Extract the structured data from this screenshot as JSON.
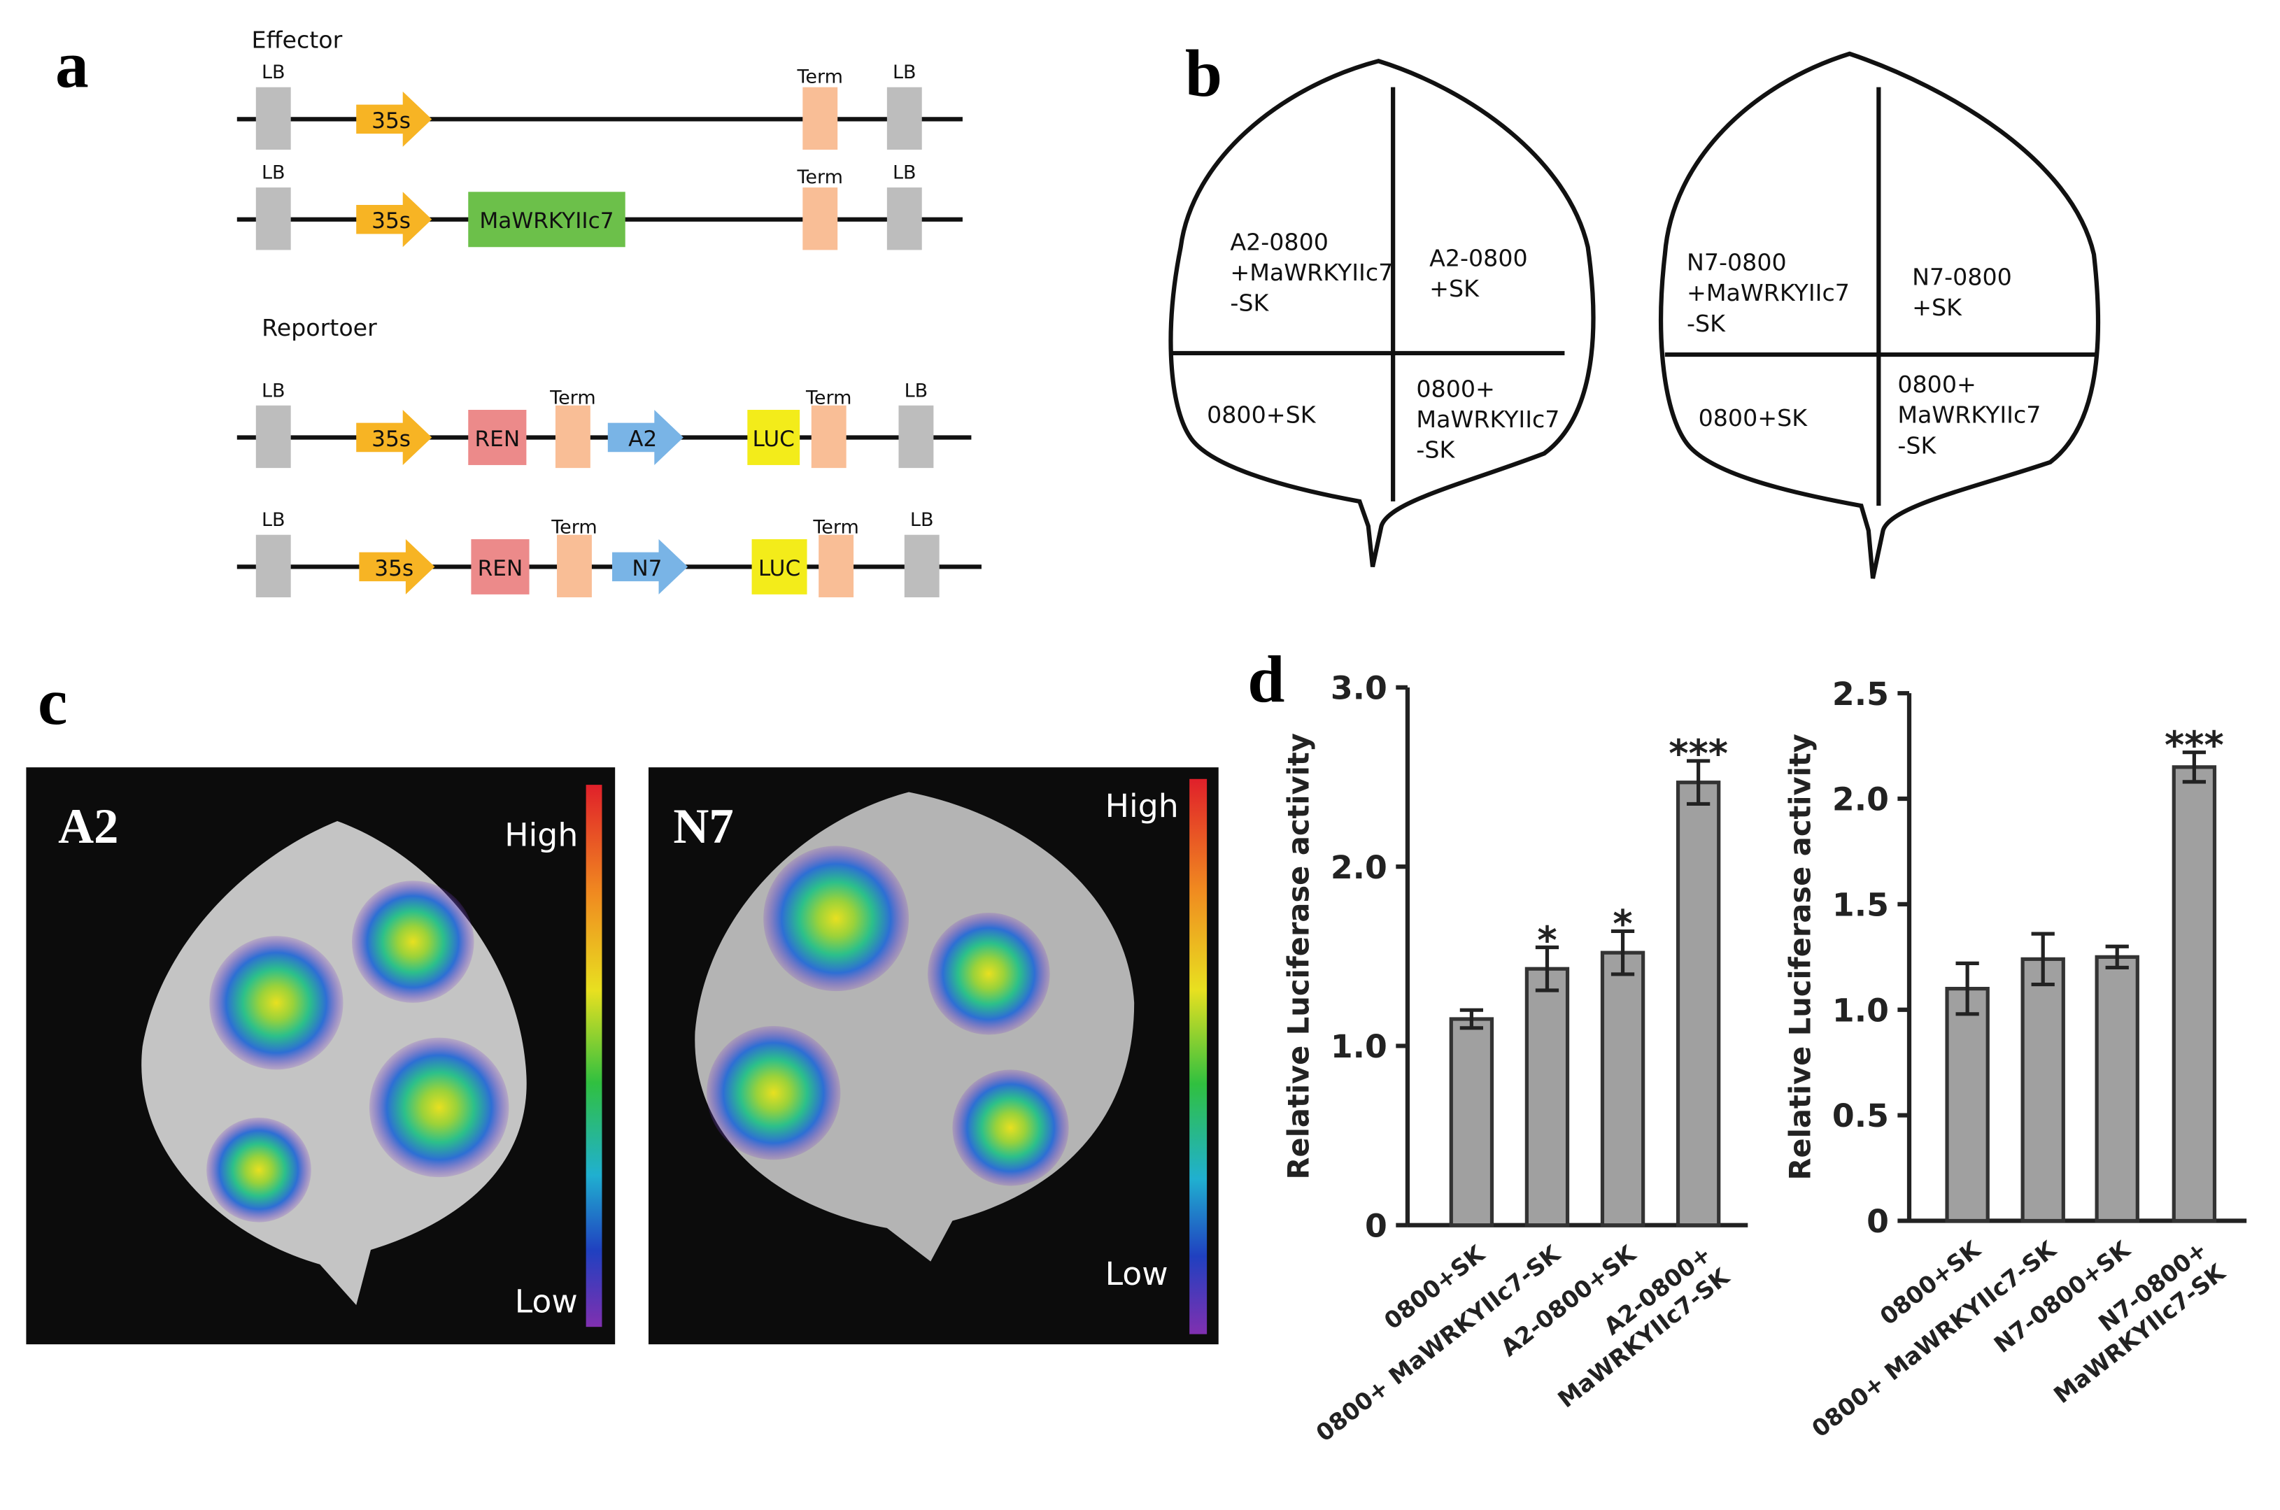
{
  "panels": {
    "a": {
      "letter": "a",
      "effector_title": "Effector",
      "reporter_title": "Reportoer",
      "constructs": [
        {
          "elements": [
            "LB",
            "35s",
            "Term",
            "LB"
          ]
        },
        {
          "elements": [
            "LB",
            "35s",
            "MaWRKYIIc7",
            "Term",
            "LB"
          ]
        },
        {
          "elements": [
            "LB",
            "35s",
            "REN",
            "Term",
            "A2",
            "LUC",
            "Term",
            "LB"
          ]
        },
        {
          "elements": [
            "LB",
            "35s",
            "REN",
            "Term",
            "N7",
            "LUC",
            "Term",
            "LB"
          ]
        }
      ]
    },
    "b": {
      "letter": "b",
      "leaves": [
        {
          "quadrants": [
            "A2-0800\n+MaWRKYIIc7\n-SK",
            "A2-0800\n+SK",
            "0800+SK",
            "0800+\nMaWRKYIIc7\n-SK"
          ]
        },
        {
          "quadrants": [
            "N7-0800\n+MaWRKYIIc7\n-SK",
            "N7-0800\n+SK",
            "0800+SK",
            "0800+\nMaWRKYIIc7\n-SK"
          ]
        }
      ]
    },
    "c": {
      "letter": "c",
      "images": [
        {
          "label": "A2",
          "high": "High",
          "low": "Low"
        },
        {
          "label": "N7",
          "high": "High",
          "low": "Low"
        }
      ]
    },
    "d": {
      "letter": "d"
    }
  },
  "chart_data": [
    {
      "type": "bar",
      "y_label": "Relative Luciferase activity",
      "categories": [
        "0800+SK",
        "0800+ MaWRKYIIc7-SK",
        "A2-0800+SK",
        "A2-0800+\nMaWRKYIIc7-SK"
      ],
      "values": [
        1.15,
        1.43,
        1.52,
        2.47
      ],
      "errors": [
        0.05,
        0.12,
        0.12,
        0.12
      ],
      "significance": [
        null,
        "*",
        "*",
        "***"
      ],
      "color": "#a0a0a0",
      "ylim": [
        0,
        3.0
      ],
      "yticks": [
        0,
        {
          "value": 1,
          "label": "1.0"
        },
        {
          "value": 2,
          "label": "2.0"
        },
        {
          "value": 3,
          "label": "3.0"
        }
      ]
    },
    {
      "type": "bar",
      "y_label": "Relative Luciferase activity",
      "categories": [
        "0800+SK",
        "0800+ MaWRKYIIc7-SK",
        "N7-0800+SK",
        "N7-0800+\nMaWRKYIIc7-SK"
      ],
      "values": [
        1.1,
        1.24,
        1.25,
        2.15
      ],
      "errors": [
        0.12,
        0.12,
        0.05,
        0.07
      ],
      "significance": [
        null,
        null,
        null,
        "***"
      ],
      "color": "#a0a0a0",
      "ylim": [
        0,
        2.5
      ],
      "yticks": [
        0,
        0.5,
        {
          "value": 1,
          "label": "1.0"
        },
        1.5,
        {
          "value": 2,
          "label": "2.0"
        },
        2.5
      ]
    }
  ]
}
